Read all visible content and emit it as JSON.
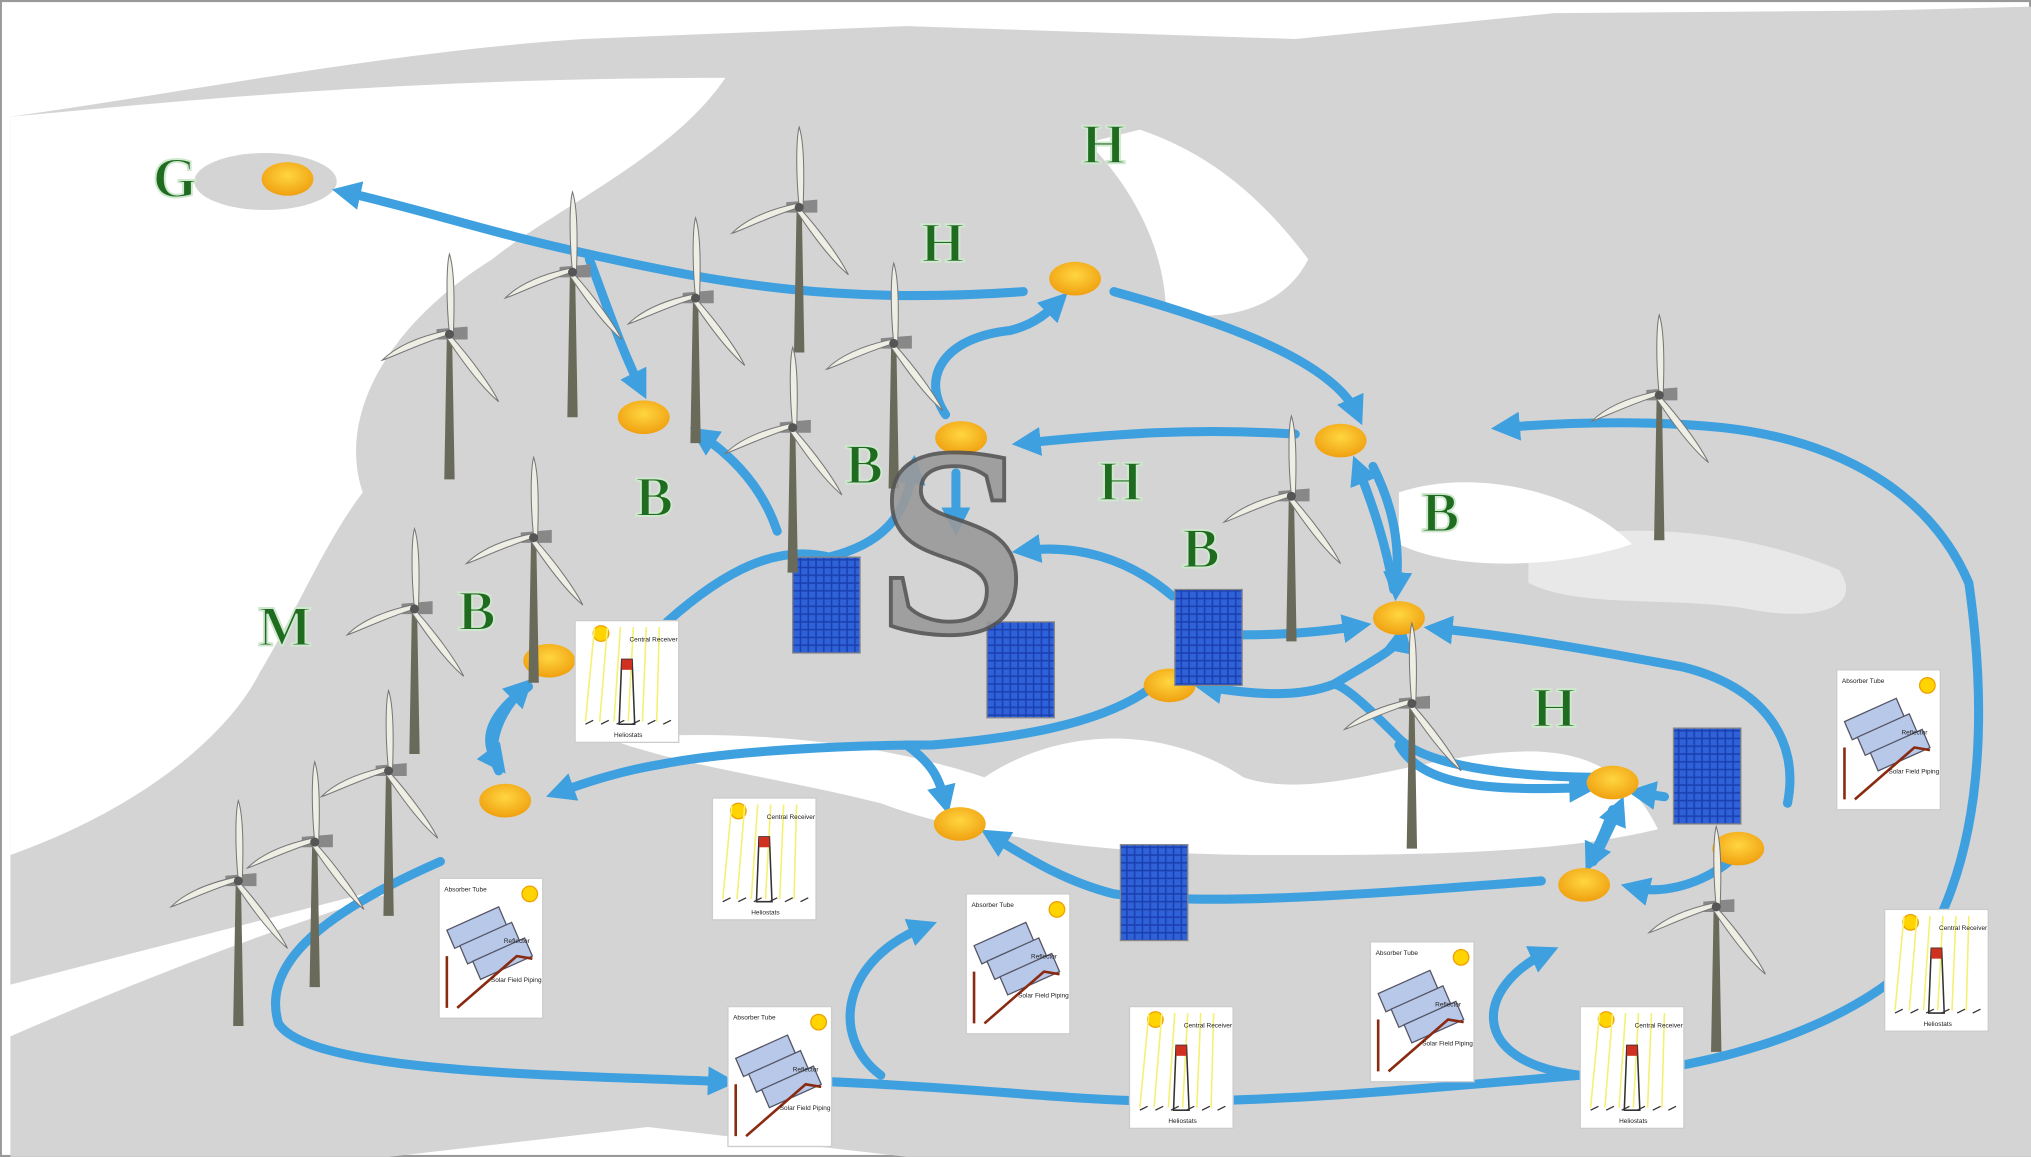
{
  "letters": [
    "G",
    "H",
    "H",
    "B",
    "B",
    "H",
    "B",
    "B",
    "M",
    "B",
    "H",
    "S"
  ],
  "tower_diagram": {
    "receiver": "Central Receiver",
    "field": "Heliostats"
  },
  "trough_diagram": {
    "tube": "Absorber Tube",
    "reflector": "Reflector",
    "piping": "Solar Field Piping"
  }
}
